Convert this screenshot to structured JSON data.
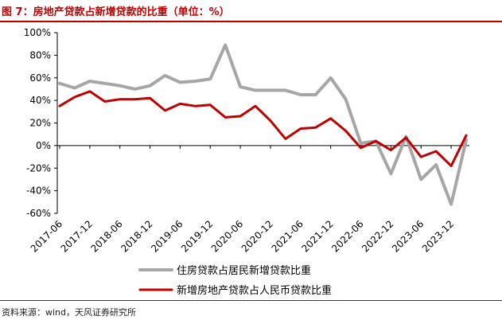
{
  "title": "图 7：房地产贷款占新增贷款的比重（单位：%）",
  "source": "资料来源：wind，天风证券研究所",
  "colors": {
    "accent": "#c00000",
    "series_housing": "#a6a6a6",
    "series_realestate": "#c00000"
  },
  "chart_data": {
    "type": "line",
    "x_tick_labels": [
      "2017-06",
      "2017-12",
      "2018-06",
      "2018-12",
      "2019-06",
      "2019-12",
      "2020-06",
      "2020-12",
      "2021-06",
      "2021-12",
      "2022-06",
      "2022-12",
      "2023-06",
      "2023-12"
    ],
    "y_tick_labels": [
      "100%",
      "80%",
      "60%",
      "40%",
      "20%",
      "0%",
      "-20%",
      "-40%",
      "-60%"
    ],
    "ylim": [
      -60,
      100
    ],
    "y_ticks": [
      100,
      80,
      60,
      40,
      20,
      0,
      -20,
      -40,
      -60
    ],
    "grid": false,
    "legend_position": "bottom",
    "series": [
      {
        "name": "住房贷款占居民新增贷款比重",
        "values": [
          55,
          51,
          57,
          55,
          53,
          50,
          53,
          62,
          56,
          57,
          59,
          89,
          52,
          49,
          49,
          49,
          45,
          45,
          60,
          41,
          2,
          4,
          -25,
          8,
          -30,
          -17,
          -52,
          5
        ]
      },
      {
        "name": "新增房地产贷款占人民币贷款比重",
        "values": [
          35,
          43,
          48,
          39,
          41,
          41,
          42,
          31,
          37,
          35,
          36,
          25,
          26,
          35,
          22,
          6,
          15,
          16,
          24,
          13,
          -2,
          4,
          -4,
          7,
          -10,
          -5,
          -18,
          9
        ]
      }
    ]
  }
}
